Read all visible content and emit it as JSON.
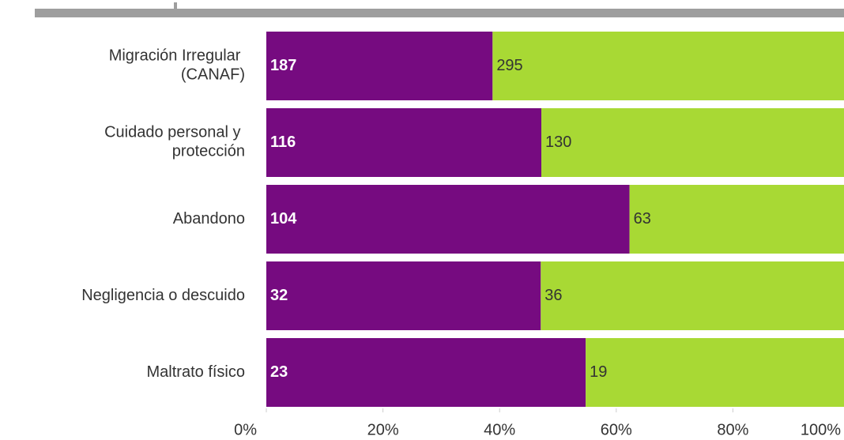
{
  "chart_data": {
    "type": "bar",
    "orientation": "horizontal",
    "stacking": "percent",
    "categories": [
      "Migración Irregular (CANAF)",
      "Cuidado personal y protección",
      "Abandono",
      "Negligencia o descuido",
      "Maltrato físico"
    ],
    "series": [
      {
        "color": "#760b80",
        "values": [
          187,
          116,
          104,
          32,
          23
        ]
      },
      {
        "color": "#a8d934",
        "values": [
          295,
          130,
          63,
          36,
          19
        ]
      }
    ],
    "xlim": [
      0,
      100
    ],
    "xticks": [
      {
        "value": 0,
        "label": "0%"
      },
      {
        "value": 20,
        "label": "20%"
      },
      {
        "value": 40,
        "label": "40%"
      },
      {
        "value": 60,
        "label": "60%"
      },
      {
        "value": 80,
        "label": "80%"
      },
      {
        "value": 100,
        "label": "100%"
      }
    ]
  }
}
